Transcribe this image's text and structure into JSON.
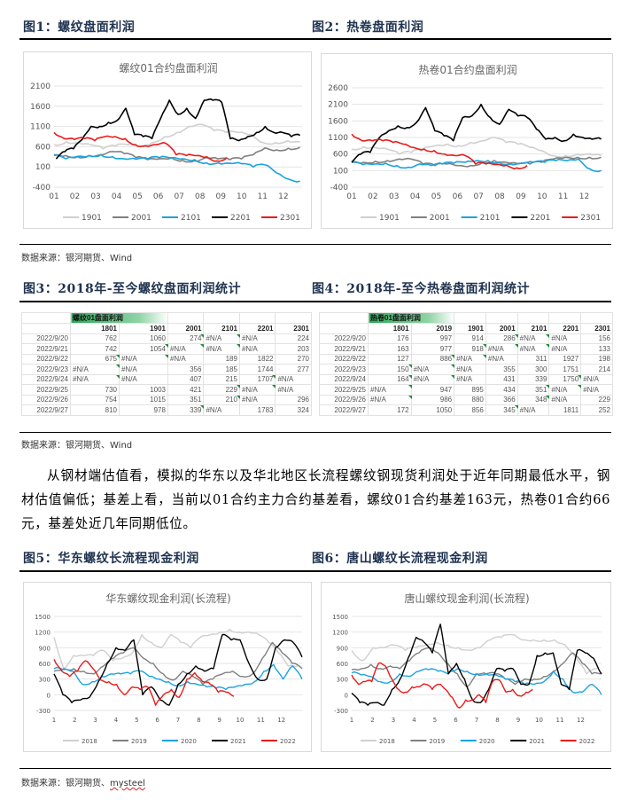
{
  "figures": {
    "fig1_title": "图1：螺纹盘面利润",
    "fig2_title": "图2：热卷盘面利润",
    "fig3_title": "图3：2018年-至今螺纹盘面利润统计",
    "fig4_title": "图4：2018年-至今热卷盘面利润统计",
    "fig5_title": "图5：华东螺纹长流程现金利润",
    "fig6_title": "图6：唐山螺纹长流程现金利润"
  },
  "sources": {
    "s1": "数据来源：银河期货、Wind",
    "s2": "数据来源：银河期货、Wind",
    "s3_prefix": "数据来源：银河期货、",
    "s3_suffix": "mysteel"
  },
  "paragraph": "从钢材端估值看，模拟的华东以及华北地区长流程螺纹钢现货利润处于近年同期最低水平，钢材估值偏低；基差上看，当前以01合约主力合约基差看，螺纹01合约基差163元，热卷01合约66元，基差处近几年同期低位。",
  "table1": {
    "title": "螺纹01盘面利润",
    "columns": [
      "1801",
      "1901",
      "2001",
      "2101",
      "2201",
      "2301"
    ],
    "rows": [
      {
        "date": "2022/9/20",
        "values": [
          "762",
          "1060",
          "274",
          "#N/A",
          "#N/A",
          "224"
        ]
      },
      {
        "date": "2022/9/21",
        "values": [
          "742",
          "1054",
          "#N/A",
          "#N/A",
          "#N/A",
          "203"
        ]
      },
      {
        "date": "2022/9/22",
        "values": [
          "675",
          "#N/A",
          "#N/A",
          "189",
          "1822",
          "270"
        ]
      },
      {
        "date": "2022/9/23",
        "values": [
          "#N/A",
          "#N/A",
          "356",
          "185",
          "1744",
          "277"
        ]
      },
      {
        "date": "2022/9/24",
        "values": [
          "#N/A",
          "#N/A",
          "407",
          "215",
          "1707",
          "#N/A"
        ]
      },
      {
        "date": "2022/9/25",
        "values": [
          "730",
          "1003",
          "421",
          "229",
          "#N/A",
          "#N/A"
        ]
      },
      {
        "date": "2022/9/26",
        "values": [
          "754",
          "1015",
          "351",
          "210",
          "#N/A",
          "296"
        ]
      },
      {
        "date": "2022/9/27",
        "values": [
          "810",
          "978",
          "339",
          "#N/A",
          "1783",
          "324"
        ]
      }
    ]
  },
  "table2": {
    "title": "热卷01盘面利润",
    "columns": [
      "1801",
      "2019",
      "1901",
      "2001",
      "2101",
      "2201",
      "2301"
    ],
    "rows": [
      {
        "date": "2022/9/20",
        "values": [
          "176",
          "997",
          "914",
          "286",
          "#N/A",
          "#N/A",
          "156"
        ]
      },
      {
        "date": "2022/9/21",
        "values": [
          "163",
          "977",
          "918",
          "#N/A",
          "#N/A",
          "#N/A",
          "133"
        ]
      },
      {
        "date": "2022/9/22",
        "values": [
          "127",
          "886",
          "#N/A",
          "#N/A",
          "311",
          "1927",
          "198"
        ]
      },
      {
        "date": "2022/9/23",
        "values": [
          "150",
          "#N/A",
          "#N/A",
          "355",
          "300",
          "1751",
          "214"
        ]
      },
      {
        "date": "2022/9/24",
        "values": [
          "164",
          "#N/A",
          "#N/A",
          "431",
          "339",
          "1750",
          "#N/A"
        ]
      },
      {
        "date": "2022/9/25",
        "values": [
          "#N/A",
          "947",
          "895",
          "434",
          "351",
          "#N/A",
          "#N/A"
        ]
      },
      {
        "date": "2022/9/26",
        "values": [
          "#N/A",
          "986",
          "880",
          "366",
          "348",
          "#N/A",
          "229"
        ]
      },
      {
        "date": "2022/9/27",
        "values": [
          "172",
          "1050",
          "856",
          "345",
          "#N/A",
          "1811",
          "252"
        ]
      }
    ]
  },
  "chart_data": [
    {
      "type": "line",
      "title": "螺纹01合约盘面利润",
      "ylim": [
        -400,
        2100
      ],
      "yticks": [
        -400,
        100,
        600,
        1100,
        1600,
        2100
      ],
      "xticks": [
        "01",
        "02",
        "03",
        "04",
        "05",
        "06",
        "07",
        "08",
        "09",
        "10",
        "11",
        "12"
      ],
      "xlim": [
        1,
        12.9
      ],
      "legend": "bottom",
      "grid": true,
      "series": [
        {
          "name": "1901",
          "color": "#d0d0d0",
          "x_range": [
            1,
            12.8
          ],
          "values": [
            650,
            720,
            700,
            650,
            550,
            620,
            650,
            600,
            700,
            850,
            950,
            1100,
            1150,
            1000,
            950,
            950,
            900,
            700,
            700,
            750,
            720
          ]
        },
        {
          "name": "2001",
          "color": "#808080",
          "x_range": [
            1,
            12.8
          ],
          "values": [
            400,
            380,
            350,
            380,
            400,
            480,
            430,
            330,
            280,
            300,
            330,
            260,
            250,
            330,
            300,
            280,
            300,
            400,
            570,
            520,
            560,
            580
          ]
        },
        {
          "name": "2101",
          "color": "#1aa3e0",
          "x_range": [
            1,
            12.8
          ],
          "values": [
            380,
            300,
            360,
            380,
            400,
            350,
            300,
            290,
            300,
            330,
            320,
            300,
            280,
            200,
            200,
            190,
            180,
            100,
            150,
            -50,
            -200,
            -250
          ]
        },
        {
          "name": "2201",
          "color": "#000000",
          "x_range": [
            1.1,
            12.8
          ],
          "values": [
            300,
            480,
            550,
            780,
            1100,
            1100,
            1200,
            1250,
            1550,
            900,
            850,
            800,
            1300,
            1750,
            1400,
            1550,
            1300,
            1750,
            1750,
            1700,
            800,
            750,
            850,
            950,
            1100,
            950,
            950,
            850,
            880
          ]
        },
        {
          "name": "2301",
          "color": "#e81c1c",
          "x_range": [
            1,
            9.3
          ],
          "values": [
            950,
            800,
            780,
            800,
            750,
            850,
            850,
            800,
            650,
            620,
            650,
            680,
            400,
            380,
            380,
            350,
            250,
            330
          ]
        }
      ]
    },
    {
      "type": "line",
      "title": "热卷01合约盘面利润",
      "ylim": [
        -400,
        2600
      ],
      "yticks": [
        -400,
        100,
        600,
        1100,
        1600,
        2100,
        2600
      ],
      "xticks": [
        "01",
        "02",
        "03",
        "04",
        "05",
        "06",
        "07",
        "08",
        "09",
        "10",
        "11",
        "12"
      ],
      "xlim": [
        1,
        12.9
      ],
      "legend": "bottom",
      "grid": true,
      "series": [
        {
          "name": "1901",
          "color": "#d0d0d0",
          "x_range": [
            1,
            12.8
          ],
          "values": [
            750,
            820,
            800,
            750,
            600,
            650,
            750,
            850,
            900,
            850,
            950,
            1000,
            1100,
            950,
            900,
            800,
            700,
            550,
            550,
            600,
            600,
            550
          ]
        },
        {
          "name": "2001",
          "color": "#808080",
          "x_range": [
            1,
            12.8
          ],
          "values": [
            350,
            350,
            380,
            400,
            450,
            450,
            300,
            250,
            300,
            250,
            250,
            350,
            400,
            350,
            300,
            300,
            350,
            450,
            500,
            500,
            500,
            500
          ]
        },
        {
          "name": "2101",
          "color": "#1aa3e0",
          "x_range": [
            1,
            12.8
          ],
          "values": [
            350,
            280,
            300,
            320,
            250,
            200,
            300,
            250,
            300,
            320,
            350,
            400,
            400,
            350,
            300,
            320,
            350,
            350,
            400,
            400,
            450,
            150,
            100
          ]
        },
        {
          "name": "2201",
          "color": "#000000",
          "x_range": [
            1,
            12.8
          ],
          "values": [
            350,
            600,
            650,
            1100,
            1300,
            1450,
            1400,
            1550,
            2000,
            1300,
            1150,
            1000,
            1700,
            1750,
            2100,
            1700,
            1500,
            1950,
            1750,
            1700,
            1350,
            1050,
            1100,
            1000,
            1200,
            1100,
            1050,
            1050
          ]
        },
        {
          "name": "2301",
          "color": "#e81c1c",
          "x_range": [
            1,
            9.3
          ],
          "values": [
            1200,
            1000,
            1000,
            1000,
            950,
            900,
            800,
            750,
            700,
            600,
            550,
            550,
            300,
            300,
            280,
            260,
            180,
            250
          ]
        }
      ]
    },
    {
      "type": "line",
      "title": "华东螺纹现金利润(长流程)",
      "ylim": [
        -300,
        1500
      ],
      "yticks": [
        -300,
        0,
        300,
        600,
        900,
        1200,
        1500
      ],
      "xticks": [
        "1",
        "2",
        "3",
        "4",
        "5",
        "6",
        "7",
        "8",
        "9",
        "10",
        "11",
        "12"
      ],
      "xlim": [
        1,
        13
      ],
      "legend": "bottom",
      "grid": true,
      "series": [
        {
          "name": "2018",
          "color": "#d0d0d0",
          "x_range": [
            1,
            12.8
          ],
          "values": [
            1100,
            500,
            750,
            750,
            750,
            850,
            650,
            700,
            800,
            1150,
            1000,
            900,
            1150,
            1000,
            900,
            1100,
            1150,
            1200,
            1250,
            1200,
            1200,
            1150,
            1000,
            800,
            550,
            550
          ]
        },
        {
          "name": "2019",
          "color": "#808080",
          "x_range": [
            1,
            13
          ],
          "values": [
            450,
            500,
            500,
            450,
            400,
            550,
            700,
            800,
            900,
            700,
            600,
            400,
            280,
            450,
            350,
            200,
            300,
            400,
            450,
            350,
            400,
            700,
            1000,
            800,
            600,
            500
          ]
        },
        {
          "name": "2020",
          "color": "#1aa3e0",
          "x_range": [
            1,
            13
          ],
          "values": [
            500,
            480,
            450,
            200,
            250,
            350,
            400,
            400,
            400,
            450,
            350,
            300,
            250,
            180,
            250,
            200,
            150,
            130,
            100,
            150,
            200,
            250,
            450,
            580,
            300,
            550,
            300
          ]
        },
        {
          "name": "2021",
          "color": "#000000",
          "x_range": [
            1,
            13
          ],
          "values": [
            400,
            0,
            -150,
            -100,
            -50,
            250,
            600,
            900,
            850,
            1050,
            0,
            150,
            -100,
            -200,
            200,
            400,
            550,
            450,
            500,
            1150,
            1050,
            1050,
            600,
            300,
            300,
            900,
            1050,
            1000,
            720
          ]
        },
        {
          "name": "2022",
          "color": "#e81c1c",
          "x_range": [
            1,
            9.7
          ],
          "values": [
            680,
            450,
            350,
            450,
            650,
            500,
            280,
            250,
            200,
            0,
            150,
            100,
            150,
            -200,
            0,
            100,
            -50,
            300,
            420,
            250,
            200,
            50,
            50,
            -30
          ]
        }
      ]
    },
    {
      "type": "line",
      "title": "唐山螺纹现金利润(长流程)",
      "ylim": [
        -300,
        1500
      ],
      "yticks": [
        -300,
        0,
        300,
        600,
        900,
        1200,
        1500
      ],
      "xticks": [
        "1",
        "2",
        "3",
        "4",
        "5",
        "6",
        "7",
        "8",
        "9",
        "10",
        "11",
        "12"
      ],
      "xlim": [
        1,
        13
      ],
      "legend": "bottom",
      "grid": true,
      "series": [
        {
          "name": "2018",
          "color": "#d0d0d0",
          "x_range": [
            1,
            12.8
          ],
          "values": [
            850,
            650,
            900,
            900,
            950,
            850,
            900,
            950,
            1000,
            950,
            900,
            850,
            900,
            1050,
            1100,
            1150,
            1050,
            1050,
            1050,
            1050,
            950,
            700,
            400,
            500
          ]
        },
        {
          "name": "2019",
          "color": "#808080",
          "x_range": [
            1,
            13
          ],
          "values": [
            480,
            500,
            580,
            500,
            550,
            500,
            650,
            800,
            900,
            800,
            600,
            400,
            150,
            400,
            400,
            400,
            300,
            200,
            300,
            300,
            350,
            450,
            600,
            800,
            600,
            400,
            400
          ]
        },
        {
          "name": "2020",
          "color": "#1aa3e0",
          "x_range": [
            1,
            13
          ],
          "values": [
            420,
            380,
            350,
            250,
            250,
            400,
            350,
            450,
            480,
            450,
            400,
            500,
            450,
            400,
            400,
            380,
            300,
            250,
            200,
            200,
            250,
            450,
            300,
            50,
            50,
            200,
            0
          ]
        },
        {
          "name": "2021",
          "color": "#000000",
          "x_range": [
            1,
            13
          ],
          "values": [
            30,
            -150,
            -200,
            -150,
            -200,
            100,
            300,
            700,
            1100,
            1000,
            800,
            1350,
            400,
            600,
            300,
            -100,
            -150,
            100,
            500,
            450,
            500,
            200,
            200,
            750,
            800,
            800,
            200,
            100,
            850,
            800,
            700,
            400
          ]
        },
        {
          "name": "2022",
          "color": "#e81c1c",
          "x_range": [
            1,
            9.7
          ],
          "values": [
            380,
            200,
            250,
            250,
            600,
            550,
            300,
            100,
            50,
            150,
            150,
            200,
            100,
            200,
            100,
            -50,
            -250,
            -100,
            -100,
            0,
            -150,
            250,
            280,
            50,
            100,
            -20,
            50,
            100
          ]
        }
      ]
    }
  ]
}
